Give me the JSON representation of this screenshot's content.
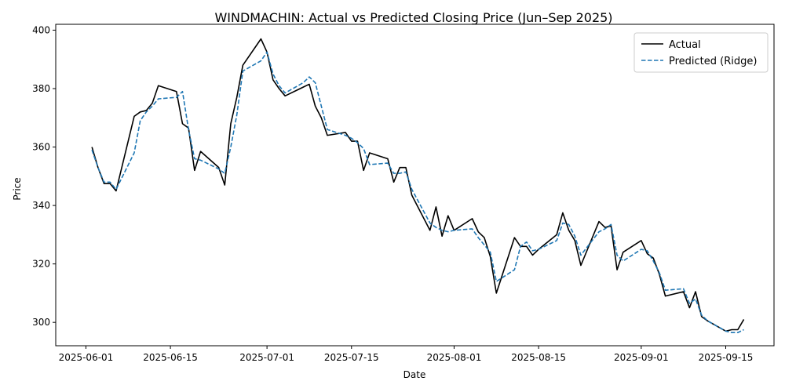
{
  "chart_data": {
    "type": "line",
    "title": "WINDMACHIN: Actual vs Predicted Closing Price (Jun–Sep 2025)",
    "xlabel": "Date",
    "ylabel": "Price",
    "xlim": [
      "2025-05-27",
      "2025-09-23"
    ],
    "ylim": [
      292,
      402
    ],
    "x_ticks": [
      "2025-06-01",
      "2025-06-15",
      "2025-07-01",
      "2025-07-15",
      "2025-08-01",
      "2025-08-15",
      "2025-09-01",
      "2025-09-15"
    ],
    "y_ticks": [
      300,
      320,
      340,
      360,
      380,
      400
    ],
    "grid": false,
    "legend_position": "top-right",
    "series": [
      {
        "name": "Actual",
        "color": "#000000",
        "style": "solid",
        "x": [
          "2025-06-02",
          "2025-06-03",
          "2025-06-04",
          "2025-06-05",
          "2025-06-06",
          "2025-06-09",
          "2025-06-10",
          "2025-06-11",
          "2025-06-12",
          "2025-06-13",
          "2025-06-16",
          "2025-06-17",
          "2025-06-18",
          "2025-06-19",
          "2025-06-20",
          "2025-06-23",
          "2025-06-24",
          "2025-06-25",
          "2025-06-26",
          "2025-06-27",
          "2025-06-30",
          "2025-07-01",
          "2025-07-02",
          "2025-07-03",
          "2025-07-04",
          "2025-07-07",
          "2025-07-08",
          "2025-07-09",
          "2025-07-10",
          "2025-07-11",
          "2025-07-14",
          "2025-07-15",
          "2025-07-16",
          "2025-07-17",
          "2025-07-18",
          "2025-07-21",
          "2025-07-22",
          "2025-07-23",
          "2025-07-24",
          "2025-07-25",
          "2025-07-28",
          "2025-07-29",
          "2025-07-30",
          "2025-07-31",
          "2025-08-01",
          "2025-08-04",
          "2025-08-05",
          "2025-08-06",
          "2025-08-07",
          "2025-08-08",
          "2025-08-11",
          "2025-08-12",
          "2025-08-13",
          "2025-08-14",
          "2025-08-15",
          "2025-08-18",
          "2025-08-19",
          "2025-08-20",
          "2025-08-21",
          "2025-08-22",
          "2025-08-25",
          "2025-08-26",
          "2025-08-27",
          "2025-08-28",
          "2025-08-29",
          "2025-09-01",
          "2025-09-02",
          "2025-09-03",
          "2025-09-04",
          "2025-09-05",
          "2025-09-08",
          "2025-09-09",
          "2025-09-10",
          "2025-09-11",
          "2025-09-12",
          "2025-09-15",
          "2025-09-16",
          "2025-09-17",
          "2025-09-18"
        ],
        "values": [
          360,
          353,
          347.5,
          347.5,
          345,
          370.5,
          372,
          372.5,
          375,
          381,
          379,
          368,
          366.5,
          352,
          358.5,
          353,
          347,
          368,
          377,
          388,
          397,
          392.5,
          383,
          380,
          377.5,
          380.5,
          381.5,
          374,
          370,
          364,
          365,
          362,
          362,
          352,
          358,
          356,
          348,
          353,
          353,
          343.5,
          331.5,
          339.5,
          329.5,
          336.5,
          331.5,
          335.5,
          331,
          329,
          322.5,
          310,
          329,
          326,
          326,
          323,
          325,
          330,
          337.5,
          331.5,
          328,
          319.5,
          334.5,
          332.5,
          333,
          318,
          324,
          328,
          323.5,
          322,
          316.5,
          309,
          310.5,
          305,
          310.5,
          302,
          300.5,
          297,
          297.5,
          297.5,
          301
        ]
      },
      {
        "name": "Predicted (Ridge)",
        "color": "#1f77b4",
        "style": "dashed",
        "x": [
          "2025-06-02",
          "2025-06-03",
          "2025-06-04",
          "2025-06-05",
          "2025-06-06",
          "2025-06-09",
          "2025-06-10",
          "2025-06-11",
          "2025-06-12",
          "2025-06-13",
          "2025-06-16",
          "2025-06-17",
          "2025-06-18",
          "2025-06-19",
          "2025-06-20",
          "2025-06-23",
          "2025-06-24",
          "2025-06-25",
          "2025-06-26",
          "2025-06-27",
          "2025-06-30",
          "2025-07-01",
          "2025-07-02",
          "2025-07-03",
          "2025-07-04",
          "2025-07-07",
          "2025-07-08",
          "2025-07-09",
          "2025-07-10",
          "2025-07-11",
          "2025-07-14",
          "2025-07-15",
          "2025-07-16",
          "2025-07-17",
          "2025-07-18",
          "2025-07-21",
          "2025-07-22",
          "2025-07-23",
          "2025-07-24",
          "2025-07-25",
          "2025-07-28",
          "2025-07-29",
          "2025-07-30",
          "2025-07-31",
          "2025-08-01",
          "2025-08-04",
          "2025-08-05",
          "2025-08-06",
          "2025-08-07",
          "2025-08-08",
          "2025-08-11",
          "2025-08-12",
          "2025-08-13",
          "2025-08-14",
          "2025-08-15",
          "2025-08-18",
          "2025-08-19",
          "2025-08-20",
          "2025-08-21",
          "2025-08-22",
          "2025-08-25",
          "2025-08-26",
          "2025-08-27",
          "2025-08-28",
          "2025-08-29",
          "2025-09-01",
          "2025-09-02",
          "2025-09-03",
          "2025-09-04",
          "2025-09-05",
          "2025-09-08",
          "2025-09-09",
          "2025-09-10",
          "2025-09-11",
          "2025-09-12",
          "2025-09-15",
          "2025-09-16",
          "2025-09-17",
          "2025-09-18"
        ],
        "values": [
          359,
          353,
          348,
          348,
          345.5,
          358,
          369,
          372,
          374,
          376.5,
          377,
          379,
          366,
          356,
          355.5,
          352.5,
          351,
          360,
          371,
          386,
          389.5,
          392.5,
          385,
          381,
          378.5,
          382,
          384,
          382,
          374,
          366,
          364,
          363,
          361.5,
          359.5,
          354,
          354.5,
          351,
          351,
          351.5,
          345.5,
          334,
          332.5,
          331.5,
          331,
          331.5,
          332,
          329,
          326.5,
          324,
          314,
          318,
          326,
          327.5,
          324.5,
          325,
          328,
          334,
          333.5,
          329.5,
          323,
          331,
          332,
          333.5,
          323,
          321,
          325,
          324.5,
          321,
          317,
          311,
          311.5,
          306.5,
          308,
          302.5,
          300.5,
          297,
          296.5,
          296.5,
          297.5
        ]
      }
    ]
  }
}
